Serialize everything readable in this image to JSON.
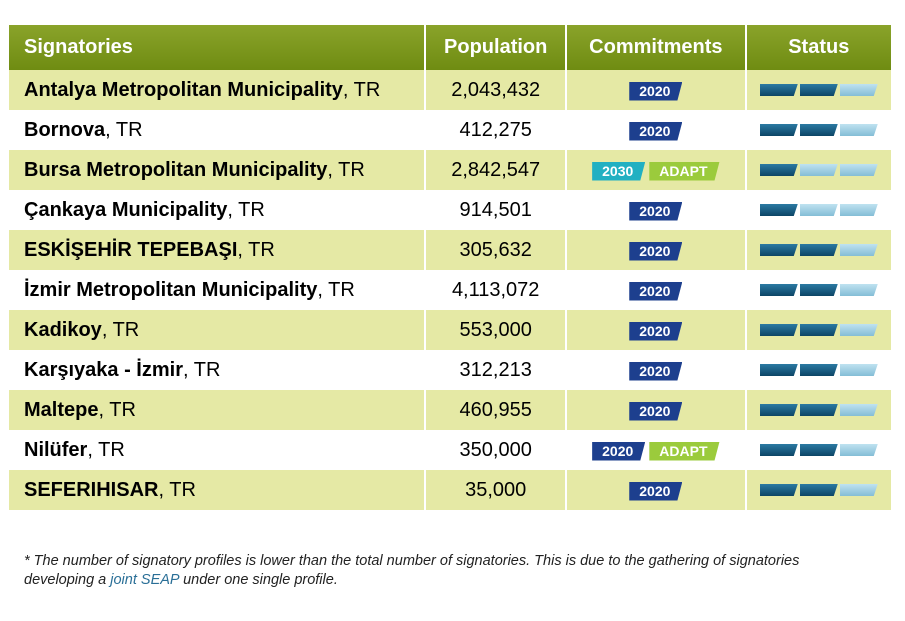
{
  "table": {
    "header": [
      "Signatories",
      "Population",
      "Commitments",
      "Status"
    ],
    "rows": [
      {
        "name": "Antalya Metropolitan Municipality",
        "suffix": ", TR",
        "population": "2,043,432",
        "commitments": [
          {
            "label": "2020",
            "color": "#1d3f8e"
          }
        ],
        "status": 2
      },
      {
        "name": "Bornova",
        "suffix": ", TR",
        "population": "412,275",
        "commitments": [
          {
            "label": "2020",
            "color": "#1d3f8e"
          }
        ],
        "status": 2
      },
      {
        "name": "Bursa Metropolitan Municipality",
        "suffix": ", TR",
        "population": "2,842,547",
        "commitments": [
          {
            "label": "2030",
            "color": "#21b0c2"
          },
          {
            "label": "ADAPT",
            "color": "#9bcb3c"
          }
        ],
        "status": 1
      },
      {
        "name": "Çankaya Municipality",
        "suffix": ", TR",
        "population": "914,501",
        "commitments": [
          {
            "label": "2020",
            "color": "#1d3f8e"
          }
        ],
        "status": 1
      },
      {
        "name": "ESKİŞEHİR TEPEBAŞI",
        "suffix": ", TR",
        "population": "305,632",
        "commitments": [
          {
            "label": "2020",
            "color": "#1d3f8e"
          }
        ],
        "status": 2
      },
      {
        "name": "İzmir Metropolitan Municipality",
        "suffix": ", TR",
        "population": "4,113,072",
        "commitments": [
          {
            "label": "2020",
            "color": "#1d3f8e"
          }
        ],
        "status": 2
      },
      {
        "name": "Kadikoy",
        "suffix": ", TR",
        "population": "553,000",
        "commitments": [
          {
            "label": "2020",
            "color": "#1d3f8e"
          }
        ],
        "status": 2
      },
      {
        "name": "Karşıyaka - İzmir",
        "suffix": ", TR",
        "population": "312,213",
        "commitments": [
          {
            "label": "2020",
            "color": "#1d3f8e"
          }
        ],
        "status": 2
      },
      {
        "name": "Maltepe",
        "suffix": ", TR",
        "population": "460,955",
        "commitments": [
          {
            "label": "2020",
            "color": "#1d3f8e"
          }
        ],
        "status": 2
      },
      {
        "name": "Nilüfer",
        "suffix": ", TR",
        "population": "350,000",
        "commitments": [
          {
            "label": "2020",
            "color": "#1d3f8e"
          },
          {
            "label": "ADAPT",
            "color": "#9bcb3c"
          }
        ],
        "status": 2
      },
      {
        "name": "SEFERIHISAR",
        "suffix": ", TR",
        "population": "35,000",
        "commitments": [
          {
            "label": "2020",
            "color": "#1d3f8e"
          }
        ],
        "status": 2
      }
    ]
  },
  "footnote": {
    "before": "* The number of signatory profiles is lower than the total number of signatories. This is due to the gathering of signatories developing a ",
    "link": "joint SEAP",
    "after": " under one single profile."
  }
}
